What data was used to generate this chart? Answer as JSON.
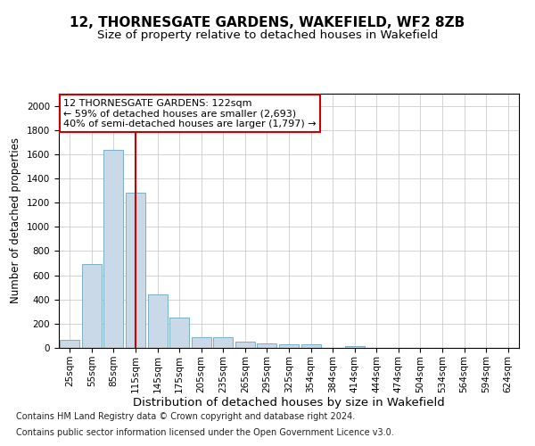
{
  "title": "12, THORNESGATE GARDENS, WAKEFIELD, WF2 8ZB",
  "subtitle": "Size of property relative to detached houses in Wakefield",
  "xlabel": "Distribution of detached houses by size in Wakefield",
  "ylabel": "Number of detached properties",
  "bar_color": "#c9d9e8",
  "bar_edge_color": "#7aafc8",
  "categories": [
    "25sqm",
    "55sqm",
    "85sqm",
    "115sqm",
    "145sqm",
    "175sqm",
    "205sqm",
    "235sqm",
    "265sqm",
    "295sqm",
    "325sqm",
    "354sqm",
    "384sqm",
    "414sqm",
    "444sqm",
    "474sqm",
    "504sqm",
    "534sqm",
    "564sqm",
    "594sqm",
    "624sqm"
  ],
  "values": [
    65,
    695,
    1635,
    1285,
    445,
    252,
    88,
    88,
    50,
    40,
    28,
    28,
    0,
    18,
    0,
    0,
    0,
    0,
    0,
    0,
    0
  ],
  "ylim": [
    0,
    2100
  ],
  "yticks": [
    0,
    200,
    400,
    600,
    800,
    1000,
    1200,
    1400,
    1600,
    1800,
    2000
  ],
  "vline_color": "#cc0000",
  "vline_pos": 3.5,
  "annotation_title": "12 THORNESGATE GARDENS: 122sqm",
  "annotation_line1": "← 59% of detached houses are smaller (2,693)",
  "annotation_line2": "40% of semi-detached houses are larger (1,797) →",
  "annotation_box_color": "#cc0000",
  "footnote1": "Contains HM Land Registry data © Crown copyright and database right 2024.",
  "footnote2": "Contains public sector information licensed under the Open Government Licence v3.0.",
  "title_fontsize": 11,
  "subtitle_fontsize": 9.5,
  "xlabel_fontsize": 9.5,
  "ylabel_fontsize": 8.5,
  "tick_fontsize": 7.5,
  "annotation_fontsize": 8,
  "footnote_fontsize": 7
}
